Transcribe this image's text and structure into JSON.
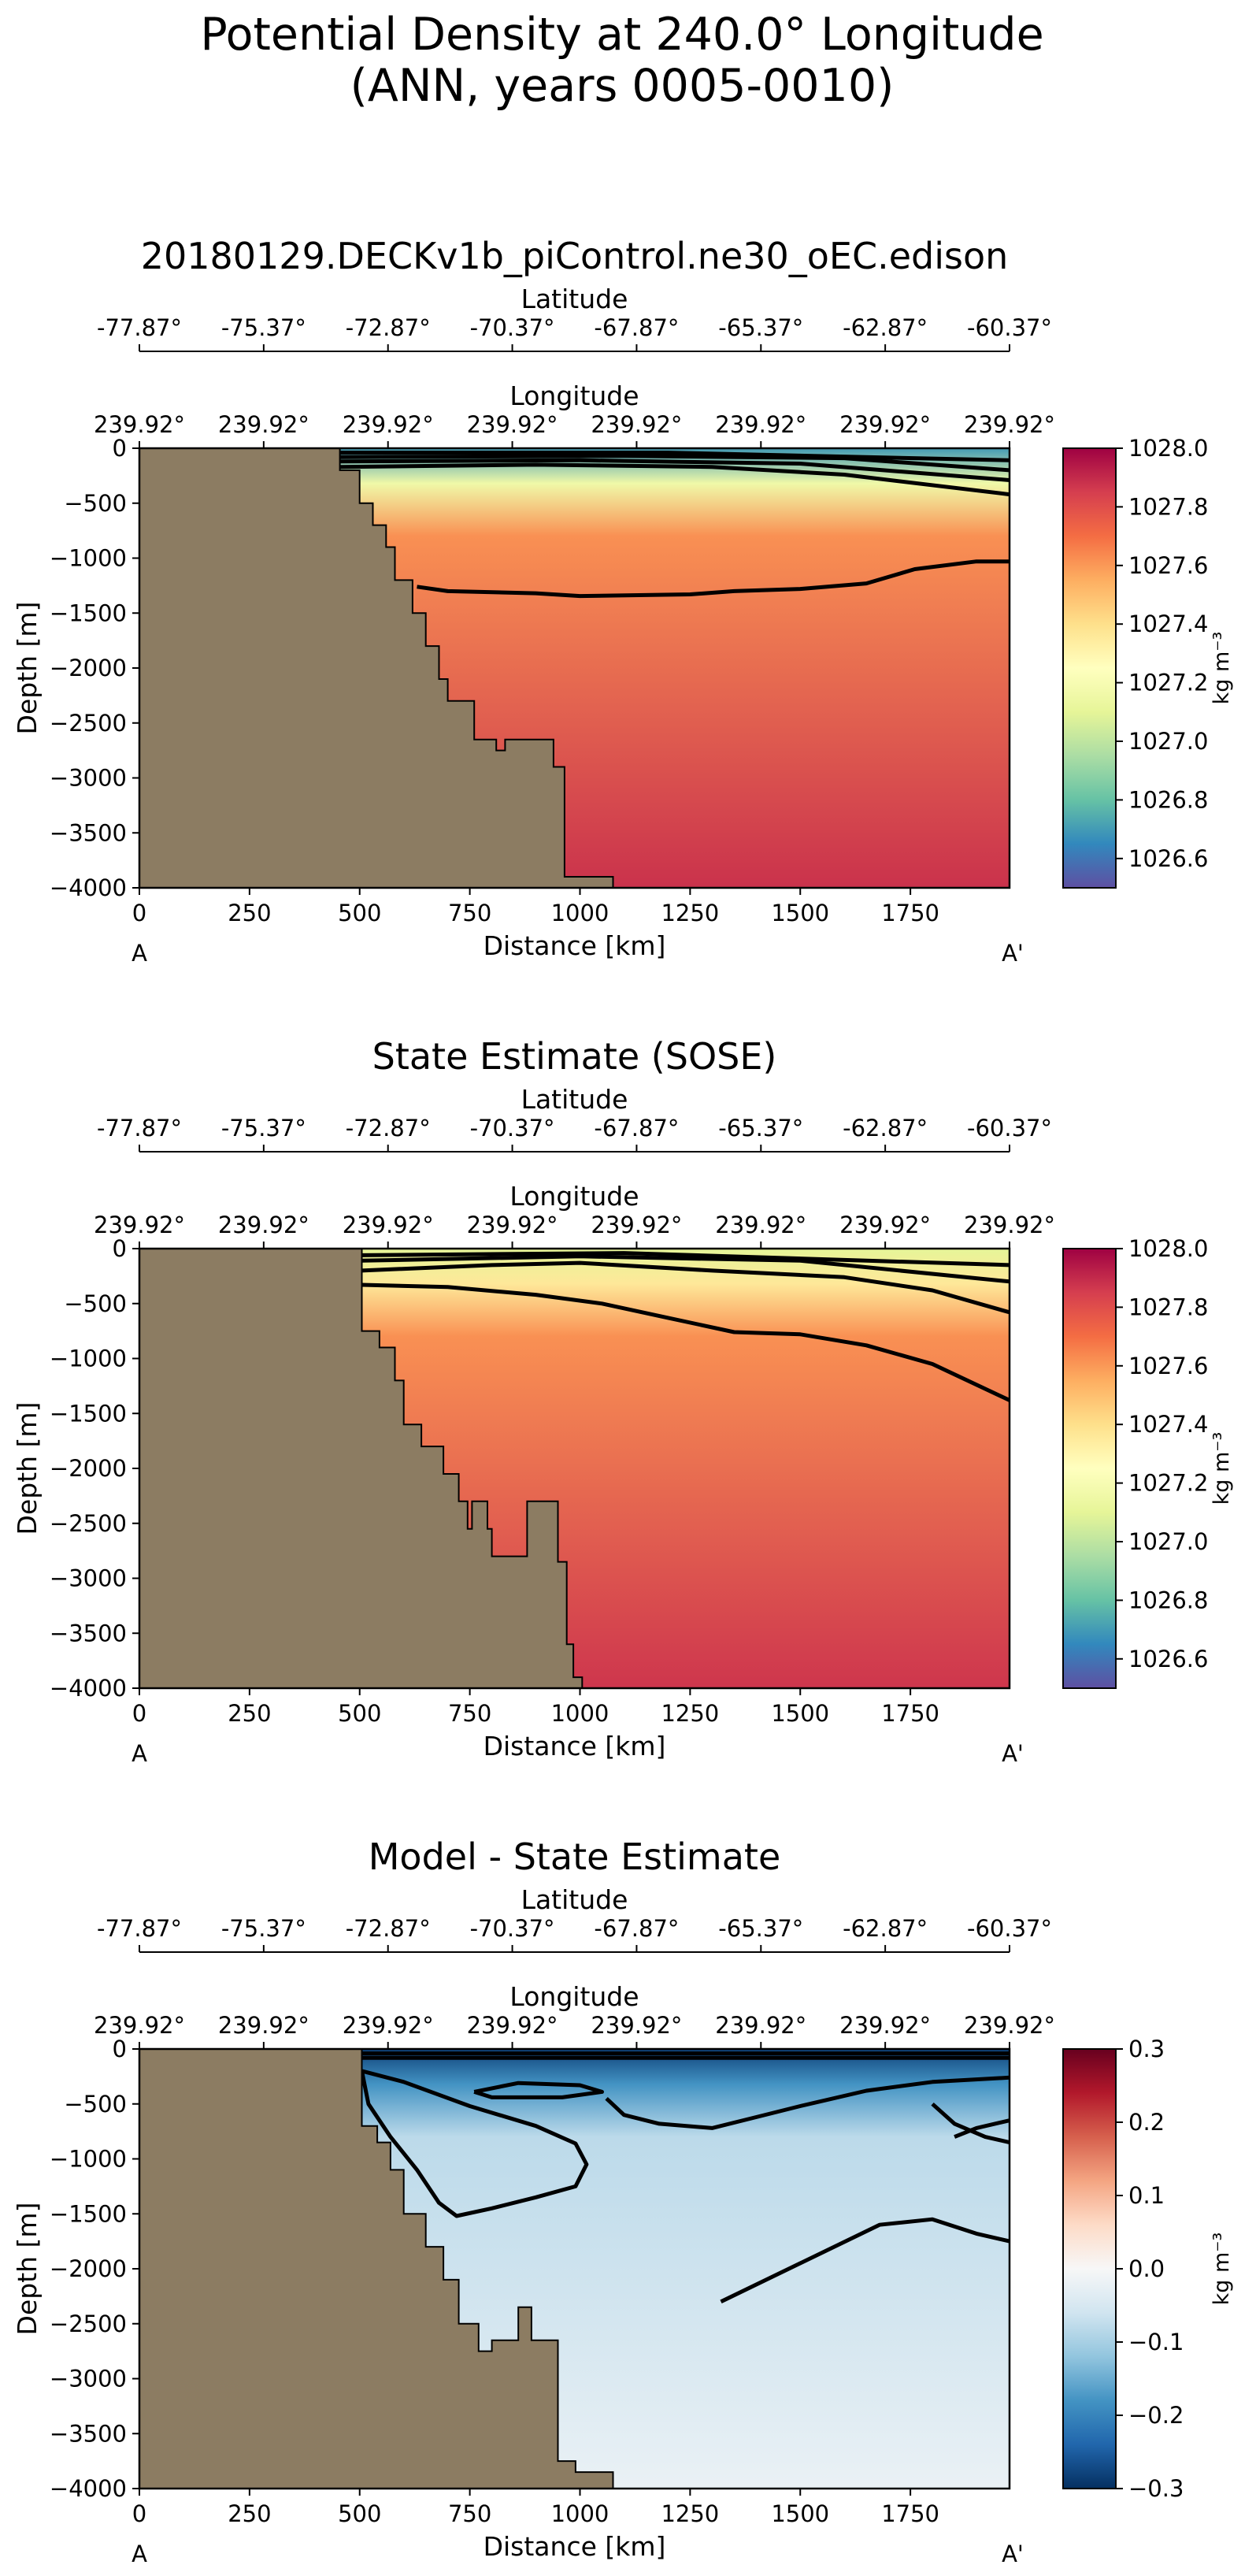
{
  "figure": {
    "title_line1": "Potential Density at 240.0° Longitude",
    "title_line2": "(ANN, years 0005-0010)"
  },
  "chart_data": [
    {
      "type": "heatmap",
      "title": "20180129.DECKv1b_piControl.ne30_oEC.edison",
      "xlabel": "Distance [km]",
      "ylabel": "Depth [m]",
      "xlim": [
        0,
        1975
      ],
      "ylim": [
        -4000,
        0
      ],
      "x_ticks": [
        0,
        250,
        500,
        750,
        1000,
        1250,
        1500,
        1750
      ],
      "y_ticks": [
        0,
        -500,
        -1000,
        -1500,
        -2000,
        -2500,
        -3000,
        -3500,
        -4000
      ],
      "top_axis_1": {
        "label": "Latitude",
        "ticks": [
          "-77.87°",
          "-75.37°",
          "-72.87°",
          "-70.37°",
          "-67.87°",
          "-65.37°",
          "-62.87°",
          "-60.37°"
        ]
      },
      "top_axis_2": {
        "label": "Longitude",
        "ticks": [
          "239.92°",
          "239.92°",
          "239.92°",
          "239.92°",
          "239.92°",
          "239.92°",
          "239.92°",
          "239.92°"
        ]
      },
      "endpoints": [
        "A",
        "A'"
      ],
      "colorbar": {
        "min": 1026.5,
        "max": 1028.0,
        "ticks": [
          "1028.0",
          "1027.8",
          "1027.6",
          "1027.4",
          "1027.2",
          "1027.0",
          "1026.8",
          "1026.6"
        ],
        "label": "kg m⁻³",
        "colormap": "Spectral_r"
      },
      "land_color": "#8c7c62",
      "bathymetry": [
        [
          0,
          -4000
        ],
        [
          0,
          0
        ],
        [
          455,
          0
        ],
        [
          455,
          -200
        ],
        [
          500,
          -200
        ],
        [
          500,
          -500
        ],
        [
          530,
          -500
        ],
        [
          530,
          -700
        ],
        [
          560,
          -700
        ],
        [
          560,
          -900
        ],
        [
          580,
          -900
        ],
        [
          580,
          -1200
        ],
        [
          620,
          -1200
        ],
        [
          620,
          -1500
        ],
        [
          650,
          -1500
        ],
        [
          650,
          -1800
        ],
        [
          680,
          -1800
        ],
        [
          680,
          -2100
        ],
        [
          700,
          -2100
        ],
        [
          700,
          -2300
        ],
        [
          760,
          -2300
        ],
        [
          760,
          -2650
        ],
        [
          790,
          -2650
        ],
        [
          790,
          -2650
        ],
        [
          810,
          -2650
        ],
        [
          810,
          -2750
        ],
        [
          830,
          -2750
        ],
        [
          830,
          -2650
        ],
        [
          940,
          -2650
        ],
        [
          940,
          -2900
        ],
        [
          965,
          -2900
        ],
        [
          965,
          -3900
        ],
        [
          1075,
          -3900
        ],
        [
          1075,
          -4000
        ]
      ],
      "contours": [
        [
          [
            630,
            -1260
          ],
          [
            700,
            -1300
          ],
          [
            900,
            -1320
          ],
          [
            1000,
            -1345
          ],
          [
            1250,
            -1330
          ],
          [
            1350,
            -1300
          ],
          [
            1500,
            -1280
          ],
          [
            1650,
            -1230
          ],
          [
            1760,
            -1100
          ],
          [
            1900,
            -1030
          ],
          [
            1975,
            -1030
          ]
        ],
        [
          [
            455,
            -170
          ],
          [
            900,
            -150
          ],
          [
            1300,
            -170
          ],
          [
            1600,
            -240
          ],
          [
            1975,
            -420
          ]
        ],
        [
          [
            455,
            -120
          ],
          [
            1000,
            -110
          ],
          [
            1500,
            -140
          ],
          [
            1975,
            -290
          ]
        ],
        [
          [
            455,
            -80
          ],
          [
            1100,
            -70
          ],
          [
            1600,
            -90
          ],
          [
            1975,
            -200
          ]
        ],
        [
          [
            455,
            -40
          ],
          [
            1200,
            -40
          ],
          [
            1975,
            -110
          ]
        ]
      ],
      "field": {
        "surface_value": 1026.7,
        "mid_value": 1027.62,
        "deep_value": 1027.88
      }
    },
    {
      "type": "heatmap",
      "title": "State Estimate (SOSE)",
      "xlabel": "Distance [km]",
      "ylabel": "Depth [m]",
      "xlim": [
        0,
        1975
      ],
      "ylim": [
        -4000,
        0
      ],
      "x_ticks": [
        0,
        250,
        500,
        750,
        1000,
        1250,
        1500,
        1750
      ],
      "y_ticks": [
        0,
        -500,
        -1000,
        -1500,
        -2000,
        -2500,
        -3000,
        -3500,
        -4000
      ],
      "top_axis_1": {
        "label": "Latitude",
        "ticks": [
          "-77.87°",
          "-75.37°",
          "-72.87°",
          "-70.37°",
          "-67.87°",
          "-65.37°",
          "-62.87°",
          "-60.37°"
        ]
      },
      "top_axis_2": {
        "label": "Longitude",
        "ticks": [
          "239.92°",
          "239.92°",
          "239.92°",
          "239.92°",
          "239.92°",
          "239.92°",
          "239.92°",
          "239.92°"
        ]
      },
      "endpoints": [
        "A",
        "A'"
      ],
      "colorbar": {
        "min": 1026.5,
        "max": 1028.0,
        "ticks": [
          "1028.0",
          "1027.8",
          "1027.6",
          "1027.4",
          "1027.2",
          "1027.0",
          "1026.8",
          "1026.6"
        ],
        "label": "kg m⁻³",
        "colormap": "Spectral_r"
      },
      "land_color": "#8c7c62",
      "bathymetry": [
        [
          0,
          -4000
        ],
        [
          0,
          0
        ],
        [
          505,
          0
        ],
        [
          505,
          -750
        ],
        [
          545,
          -750
        ],
        [
          545,
          -900
        ],
        [
          580,
          -900
        ],
        [
          580,
          -1200
        ],
        [
          600,
          -1200
        ],
        [
          600,
          -1600
        ],
        [
          640,
          -1600
        ],
        [
          640,
          -1800
        ],
        [
          690,
          -1800
        ],
        [
          690,
          -2050
        ],
        [
          725,
          -2050
        ],
        [
          725,
          -2300
        ],
        [
          745,
          -2300
        ],
        [
          745,
          -2550
        ],
        [
          755,
          -2550
        ],
        [
          755,
          -2300
        ],
        [
          790,
          -2300
        ],
        [
          790,
          -2550
        ],
        [
          800,
          -2550
        ],
        [
          800,
          -2800
        ],
        [
          880,
          -2800
        ],
        [
          880,
          -2300
        ],
        [
          950,
          -2300
        ],
        [
          950,
          -2850
        ],
        [
          970,
          -2850
        ],
        [
          970,
          -3600
        ],
        [
          985,
          -3600
        ],
        [
          985,
          -3900
        ],
        [
          1005,
          -3900
        ],
        [
          1005,
          -4000
        ]
      ],
      "contours": [
        [
          [
            505,
            -330
          ],
          [
            700,
            -350
          ],
          [
            900,
            -420
          ],
          [
            1050,
            -500
          ],
          [
            1200,
            -630
          ],
          [
            1350,
            -760
          ],
          [
            1500,
            -780
          ],
          [
            1650,
            -880
          ],
          [
            1800,
            -1050
          ],
          [
            1975,
            -1380
          ]
        ],
        [
          [
            505,
            -200
          ],
          [
            800,
            -150
          ],
          [
            1000,
            -130
          ],
          [
            1300,
            -200
          ],
          [
            1600,
            -260
          ],
          [
            1800,
            -380
          ],
          [
            1975,
            -580
          ]
        ],
        [
          [
            505,
            -110
          ],
          [
            1000,
            -70
          ],
          [
            1500,
            -110
          ],
          [
            1975,
            -300
          ]
        ],
        [
          [
            505,
            -60
          ],
          [
            1100,
            -40
          ],
          [
            1975,
            -150
          ]
        ]
      ],
      "field": {
        "surface_value": 1027.1,
        "mid_value": 1027.62,
        "deep_value": 1027.87
      }
    },
    {
      "type": "heatmap",
      "title": "Model - State Estimate",
      "xlabel": "Distance [km]",
      "ylabel": "Depth [m]",
      "xlim": [
        0,
        1975
      ],
      "ylim": [
        -4000,
        0
      ],
      "x_ticks": [
        0,
        250,
        500,
        750,
        1000,
        1250,
        1500,
        1750
      ],
      "y_ticks": [
        0,
        -500,
        -1000,
        -1500,
        -2000,
        -2500,
        -3000,
        -3500,
        -4000
      ],
      "top_axis_1": {
        "label": "Latitude",
        "ticks": [
          "-77.87°",
          "-75.37°",
          "-72.87°",
          "-70.37°",
          "-67.87°",
          "-65.37°",
          "-62.87°",
          "-60.37°"
        ]
      },
      "top_axis_2": {
        "label": "Longitude",
        "ticks": [
          "239.92°",
          "239.92°",
          "239.92°",
          "239.92°",
          "239.92°",
          "239.92°",
          "239.92°",
          "239.92°"
        ]
      },
      "endpoints": [
        "A",
        "A'"
      ],
      "colorbar": {
        "min": -0.3,
        "max": 0.3,
        "ticks": [
          "0.3",
          "0.2",
          "0.1",
          "0.0",
          "−0.1",
          "−0.2",
          "−0.3"
        ],
        "label": "kg m⁻³",
        "colormap": "RdBu_r"
      },
      "land_color": "#8c7c62",
      "bathymetry": [
        [
          0,
          -4000
        ],
        [
          0,
          0
        ],
        [
          505,
          0
        ],
        [
          505,
          -700
        ],
        [
          540,
          -700
        ],
        [
          540,
          -850
        ],
        [
          570,
          -850
        ],
        [
          570,
          -1100
        ],
        [
          600,
          -1100
        ],
        [
          600,
          -1500
        ],
        [
          650,
          -1500
        ],
        [
          650,
          -1800
        ],
        [
          690,
          -1800
        ],
        [
          690,
          -2100
        ],
        [
          725,
          -2100
        ],
        [
          725,
          -2500
        ],
        [
          770,
          -2500
        ],
        [
          770,
          -2750
        ],
        [
          800,
          -2750
        ],
        [
          800,
          -2650
        ],
        [
          860,
          -2650
        ],
        [
          860,
          -2350
        ],
        [
          890,
          -2350
        ],
        [
          890,
          -2650
        ],
        [
          950,
          -2650
        ],
        [
          950,
          -3750
        ],
        [
          990,
          -3750
        ],
        [
          990,
          -3850
        ],
        [
          1075,
          -3850
        ],
        [
          1075,
          -4000
        ]
      ],
      "contours": [
        [
          [
            505,
            -200
          ],
          [
            520,
            -500
          ],
          [
            570,
            -800
          ],
          [
            630,
            -1100
          ],
          [
            680,
            -1400
          ],
          [
            720,
            -1520
          ],
          [
            800,
            -1450
          ],
          [
            900,
            -1350
          ],
          [
            990,
            -1250
          ],
          [
            1015,
            -1050
          ],
          [
            990,
            -860
          ],
          [
            900,
            -700
          ],
          [
            750,
            -520
          ],
          [
            600,
            -300
          ],
          [
            505,
            -200
          ]
        ],
        [
          [
            760,
            -390
          ],
          [
            860,
            -310
          ],
          [
            1000,
            -330
          ],
          [
            1050,
            -390
          ],
          [
            960,
            -440
          ],
          [
            800,
            -440
          ],
          [
            760,
            -390
          ]
        ],
        [
          [
            1060,
            -450
          ],
          [
            1100,
            -600
          ],
          [
            1180,
            -680
          ],
          [
            1300,
            -720
          ],
          [
            1400,
            -620
          ],
          [
            1500,
            -520
          ],
          [
            1650,
            -380
          ],
          [
            1800,
            -300
          ],
          [
            1975,
            -260
          ]
        ],
        [
          [
            1800,
            -500
          ],
          [
            1850,
            -680
          ],
          [
            1920,
            -800
          ],
          [
            1975,
            -850
          ]
        ],
        [
          [
            1975,
            -650
          ],
          [
            1900,
            -720
          ],
          [
            1850,
            -800
          ]
        ],
        [
          [
            1320,
            -2300
          ],
          [
            1500,
            -1950
          ],
          [
            1680,
            -1600
          ],
          [
            1800,
            -1550
          ],
          [
            1900,
            -1680
          ],
          [
            1975,
            -1750
          ]
        ],
        [
          [
            505,
            -80
          ],
          [
            1975,
            -80
          ]
        ],
        [
          [
            505,
            -40
          ],
          [
            1975,
            -40
          ]
        ]
      ],
      "field": {
        "surface_value": -0.28,
        "mid_value": -0.08,
        "deep_value": -0.02
      }
    }
  ]
}
